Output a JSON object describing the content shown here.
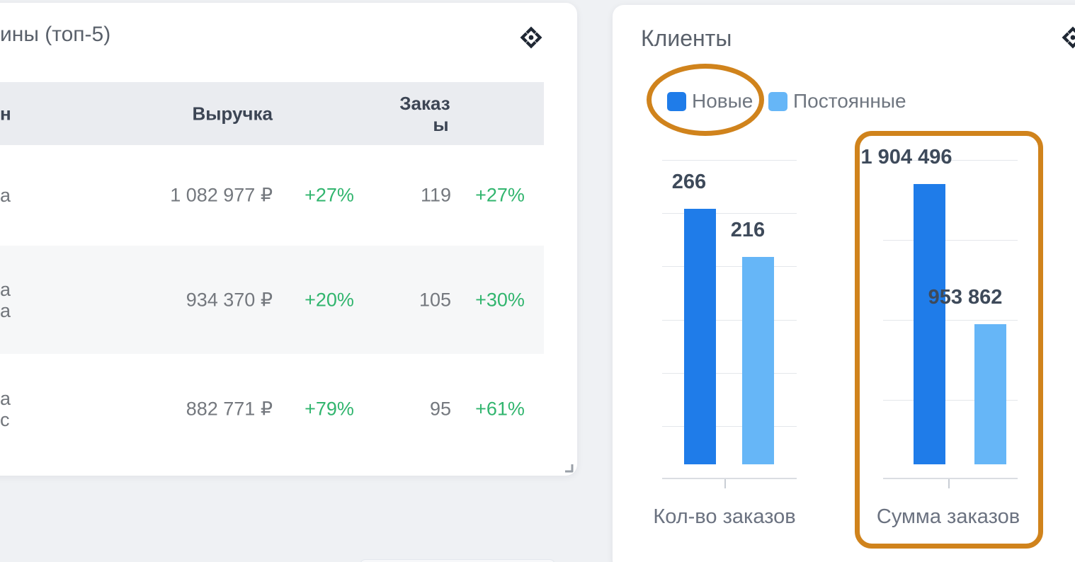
{
  "page": {
    "background": "#eff1f4"
  },
  "left_card": {
    "title_visible": "ины (топ-5)",
    "drag_icon": "move-icon",
    "resize_icon": "resize-corner-icon",
    "table": {
      "headers": {
        "store_visible": "н",
        "revenue": "Выручка",
        "orders_line1": "Заказ",
        "orders_line2": "ы"
      },
      "rows": [
        {
          "name_line1": "а",
          "name_line2": "",
          "revenue": "1 082 977 ₽",
          "revenue_delta": "+27%",
          "orders": "119",
          "orders_delta": "+27%"
        },
        {
          "name_line1": "а",
          "name_line2": "а",
          "revenue": "934 370 ₽",
          "revenue_delta": "+20%",
          "orders": "105",
          "orders_delta": "+30%"
        },
        {
          "name_line1": "а",
          "name_line2": "с",
          "revenue": "882 771 ₽",
          "revenue_delta": "+79%",
          "orders": "95",
          "orders_delta": "+61%"
        }
      ]
    }
  },
  "right_card": {
    "title": "Клиенты",
    "drag_icon": "move-icon"
  },
  "chart_data": {
    "type": "bar",
    "title": "Клиенты",
    "legend_position": "top-left",
    "grid": true,
    "categories": [
      "Кол-во заказов",
      "Сумма заказов"
    ],
    "series": [
      {
        "name": "Новые",
        "color": "#1f7ce9",
        "values": [
          266,
          1904496
        ]
      },
      {
        "name": "Постоянные",
        "color": "#66b6f7",
        "values": [
          216,
          953862
        ]
      }
    ],
    "groups": [
      {
        "category": "Кол-во заказов",
        "axis_max": 332,
        "bars": [
          {
            "series": "Новые",
            "value": 266,
            "label": "266"
          },
          {
            "series": "Постоянные",
            "value": 216,
            "label": "216"
          }
        ]
      },
      {
        "category": "Сумма заказов",
        "axis_max": 2170000,
        "bars": [
          {
            "series": "Новые",
            "value": 1904496,
            "label": "1 904 496"
          },
          {
            "series": "Постоянные",
            "value": 953862,
            "label": "953 862"
          }
        ]
      }
    ]
  },
  "annotations": [
    {
      "type": "ellipse",
      "target": "legend item Новые",
      "color": "#d0831c"
    },
    {
      "type": "rounded-rect",
      "target": "group Сумма заказов",
      "color": "#d0831c"
    }
  ],
  "colors": {
    "accent_dark_blue": "#1f7ce9",
    "accent_light_blue": "#66b6f7",
    "positive_green": "#31b56e",
    "annotation_orange": "#d0831c",
    "header_band": "#eaecf0",
    "zebra_row": "#f6f7f8"
  }
}
